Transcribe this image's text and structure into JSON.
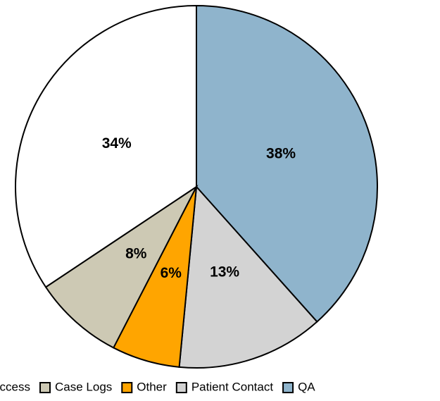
{
  "chart_data": {
    "type": "pie",
    "categories": [
      "QA",
      "Patient Contact",
      "Other",
      "Case Logs",
      "Access"
    ],
    "values": [
      38,
      13,
      6,
      8,
      34
    ],
    "value_labels": [
      "38%",
      "13%",
      "6%",
      "8%",
      "34%"
    ],
    "colors": [
      "#8fb4cc",
      "#d3d3d3",
      "#ffa500",
      "#cdc9b4",
      "#ffffff"
    ],
    "legend_order": [
      4,
      3,
      2,
      1,
      0
    ],
    "legend": "bottom"
  }
}
